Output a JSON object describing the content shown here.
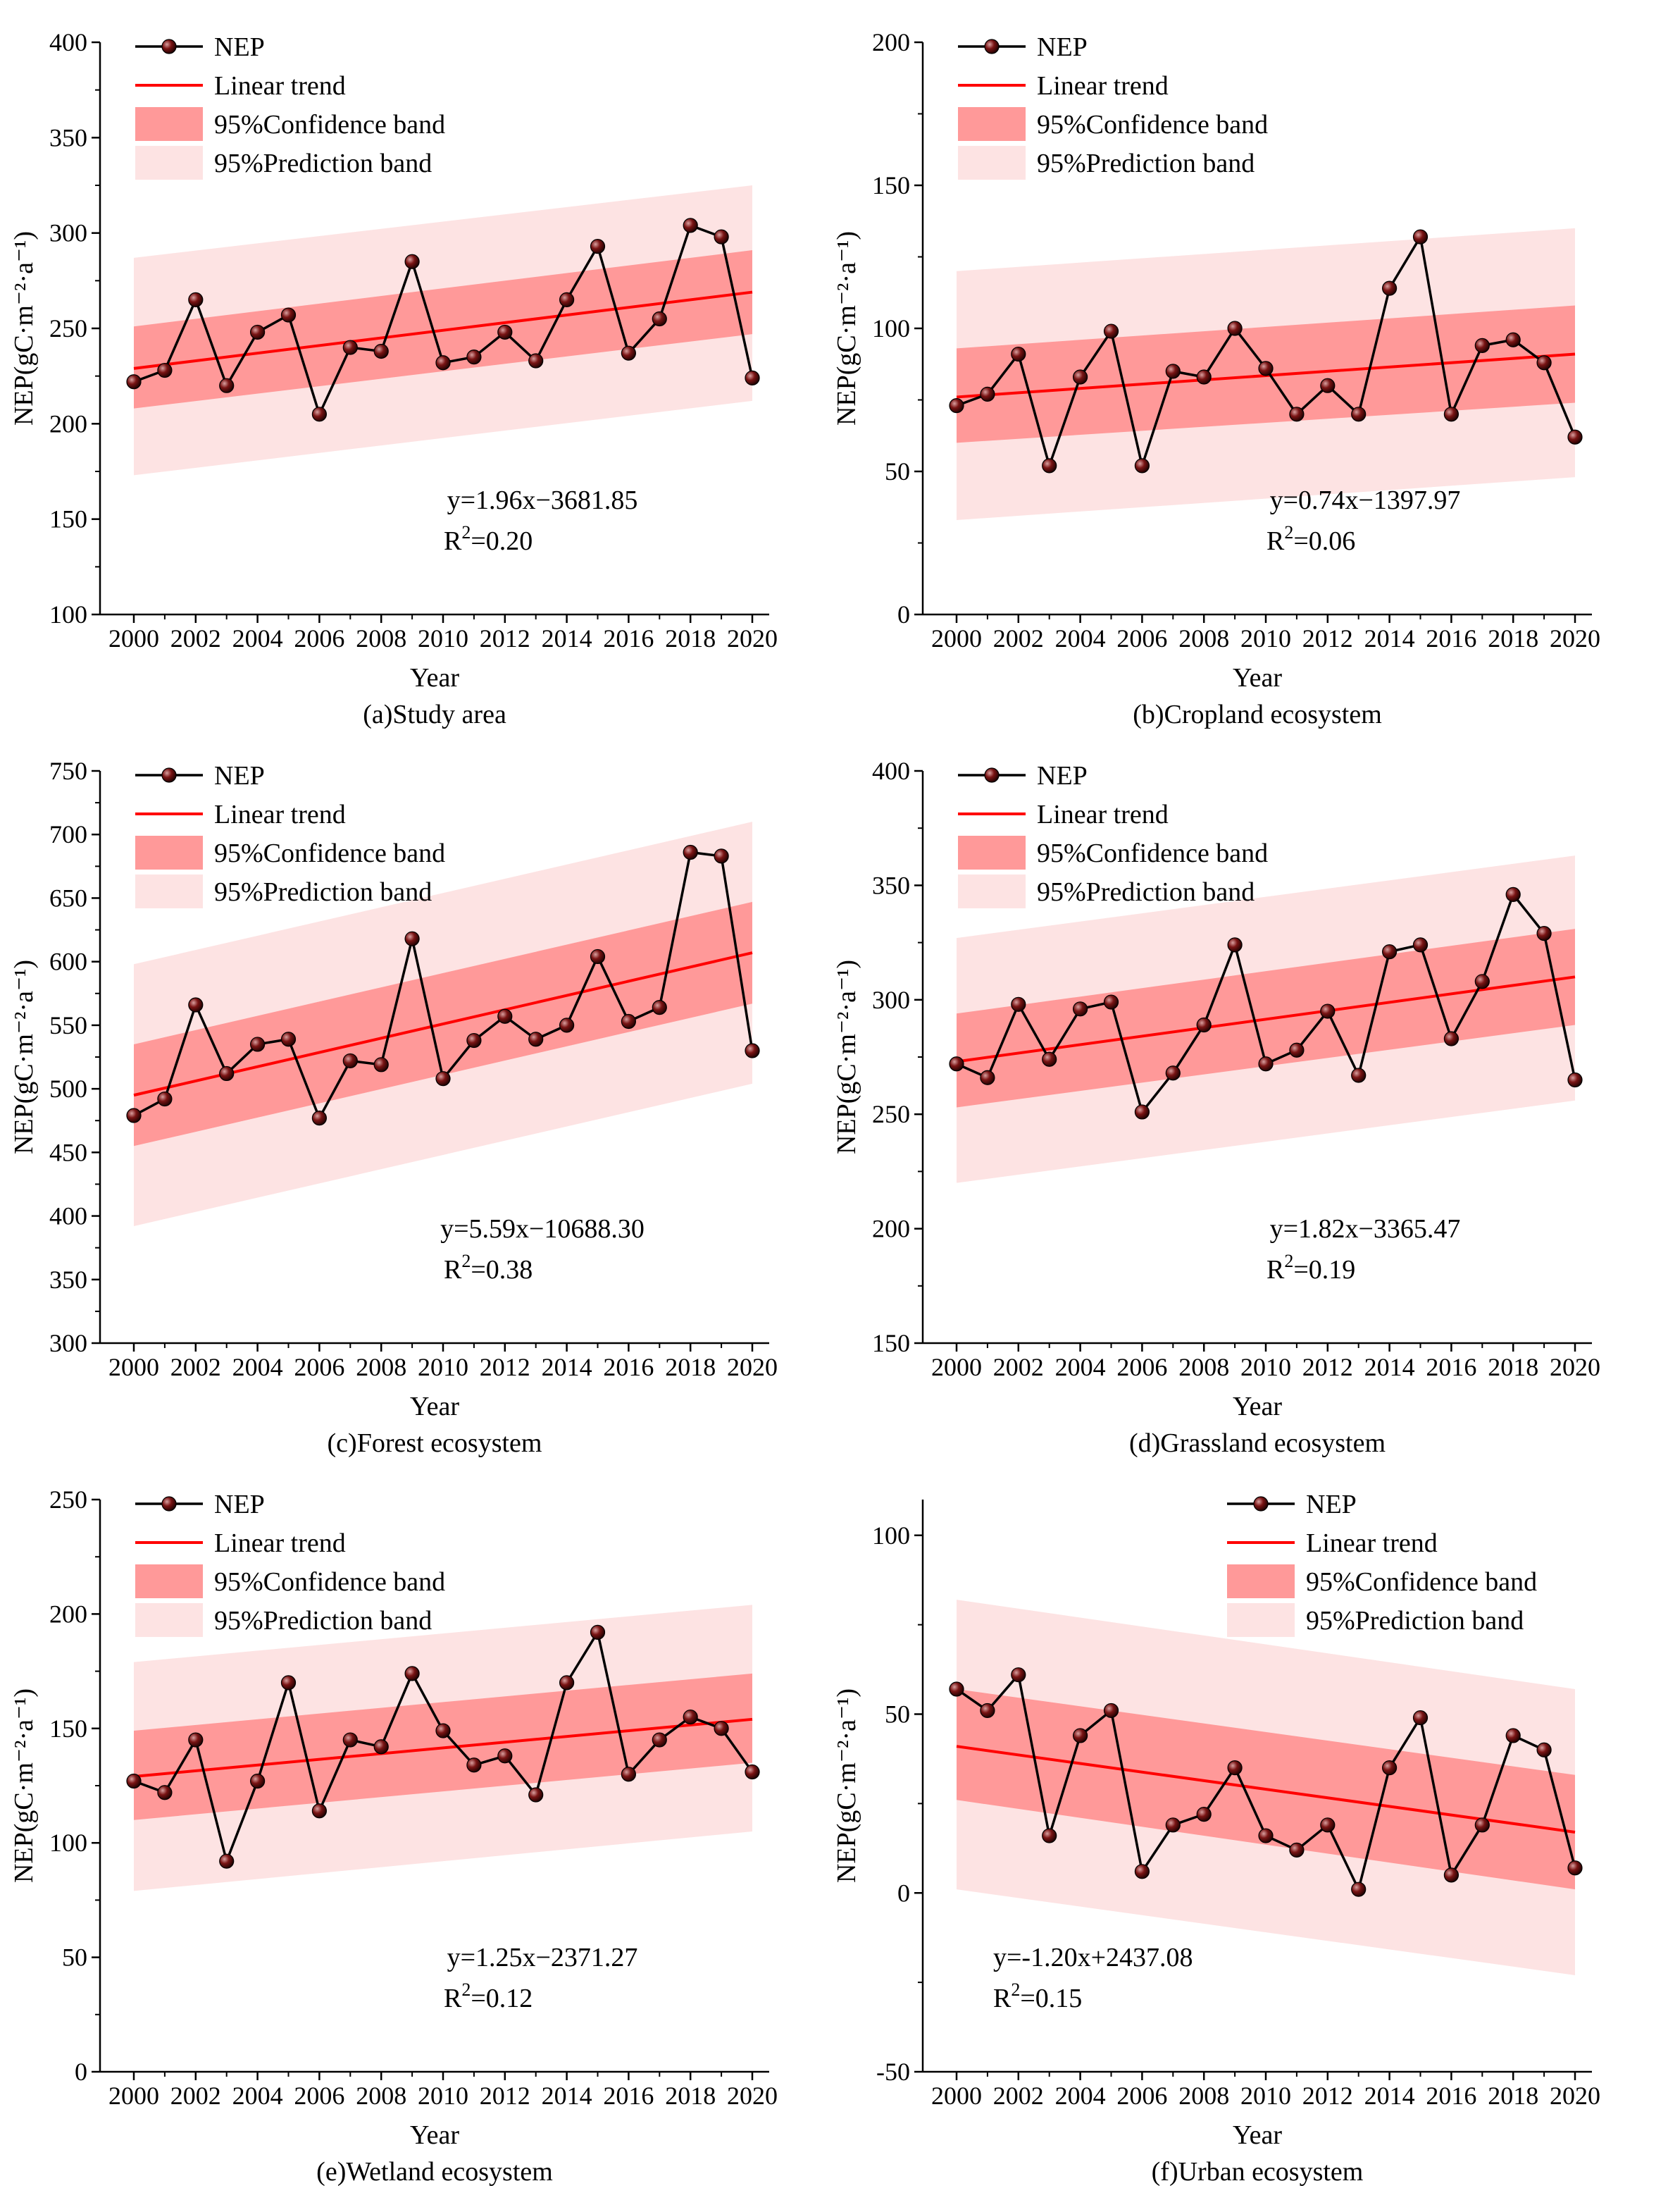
{
  "figure": {
    "colors": {
      "line": "#000000",
      "trend": "#ff0000",
      "confidence": "#ff9999",
      "prediction": "#fde3e3",
      "marker": "#7a1414"
    }
  },
  "chart_data": [
    {
      "type": "line",
      "caption": "(a)Study area",
      "xlabel": "Year",
      "ylabel": "NEP(gC·m⁻²·a⁻¹)",
      "ylim": [
        100,
        400
      ],
      "yticks": [
        100,
        150,
        200,
        250,
        300,
        350,
        400
      ],
      "xlim": [
        2000,
        2020
      ],
      "xticks": [
        2000,
        2002,
        2004,
        2006,
        2008,
        2010,
        2012,
        2014,
        2016,
        2018,
        2020
      ],
      "legend": [
        "NEP",
        "Linear trend",
        "95%Confidence band",
        "95%Prediction band"
      ],
      "x": [
        2000,
        2001,
        2002,
        2003,
        2004,
        2005,
        2006,
        2007,
        2008,
        2009,
        2010,
        2011,
        2012,
        2013,
        2014,
        2015,
        2016,
        2017,
        2018,
        2019,
        2020
      ],
      "series": [
        {
          "name": "NEP",
          "values": [
            222,
            228,
            265,
            220,
            248,
            257,
            205,
            240,
            238,
            285,
            232,
            235,
            248,
            233,
            265,
            293,
            237,
            255,
            304,
            298,
            224
          ]
        }
      ],
      "trend": {
        "slope": 1.96,
        "intercept": -3681.85,
        "start": 229,
        "end": 269
      },
      "confidence_band": {
        "lower": [
          208,
          247
        ],
        "upper": [
          251,
          291
        ]
      },
      "prediction_band": {
        "lower": [
          173,
          212
        ],
        "upper": [
          287,
          325
        ]
      },
      "equation": "y=1.96x−3681.85",
      "r2": "R2=0.20",
      "r2_text": "R",
      "r2_sup": "2",
      "r2_value": "=0.20",
      "annotation_position": "bottom-right"
    },
    {
      "type": "line",
      "caption": "(b)Cropland ecosystem",
      "xlabel": "Year",
      "ylabel": "NEP(gC·m⁻²·a⁻¹)",
      "ylim": [
        0,
        200
      ],
      "yticks": [
        0,
        50,
        100,
        150,
        200
      ],
      "xlim": [
        2000,
        2020
      ],
      "xticks": [
        2000,
        2002,
        2004,
        2006,
        2008,
        2010,
        2012,
        2014,
        2016,
        2018,
        2020
      ],
      "legend": [
        "NEP",
        "Linear trend",
        "95%Confidence band",
        "95%Prediction band"
      ],
      "x": [
        2000,
        2001,
        2002,
        2003,
        2004,
        2005,
        2006,
        2007,
        2008,
        2009,
        2010,
        2011,
        2012,
        2013,
        2014,
        2015,
        2016,
        2017,
        2018,
        2019,
        2020
      ],
      "series": [
        {
          "name": "NEP",
          "values": [
            73,
            77,
            91,
            52,
            83,
            99,
            52,
            85,
            83,
            100,
            86,
            70,
            80,
            70,
            114,
            132,
            70,
            94,
            96,
            88,
            62
          ]
        }
      ],
      "trend": {
        "slope": 0.74,
        "intercept": -1397.97,
        "start": 76,
        "end": 91
      },
      "confidence_band": {
        "lower": [
          60,
          74
        ],
        "upper": [
          93,
          108
        ]
      },
      "prediction_band": {
        "lower": [
          33,
          48
        ],
        "upper": [
          120,
          135
        ]
      },
      "equation": "y=0.74x−1397.97",
      "r2": "R2=0.06",
      "r2_text": "R",
      "r2_sup": "2",
      "r2_value": "=0.06",
      "annotation_position": "bottom-right"
    },
    {
      "type": "line",
      "caption": "(c)Forest ecosystem",
      "xlabel": "Year",
      "ylabel": "NEP(gC·m⁻²·a⁻¹)",
      "ylim": [
        300,
        750
      ],
      "yticks": [
        300,
        350,
        400,
        450,
        500,
        550,
        600,
        650,
        700,
        750
      ],
      "xlim": [
        2000,
        2020
      ],
      "xticks": [
        2000,
        2002,
        2004,
        2006,
        2008,
        2010,
        2012,
        2014,
        2016,
        2018,
        2020
      ],
      "legend": [
        "NEP",
        "Linear trend",
        "95%Confidence band",
        "95%Prediction band"
      ],
      "x": [
        2000,
        2001,
        2002,
        2003,
        2004,
        2005,
        2006,
        2007,
        2008,
        2009,
        2010,
        2011,
        2012,
        2013,
        2014,
        2015,
        2016,
        2017,
        2018,
        2019,
        2020
      ],
      "series": [
        {
          "name": "NEP",
          "values": [
            479,
            492,
            566,
            512,
            535,
            539,
            477,
            522,
            519,
            618,
            508,
            538,
            557,
            539,
            550,
            604,
            553,
            564,
            686,
            683,
            530
          ]
        }
      ],
      "trend": {
        "slope": 5.59,
        "intercept": -10688.3,
        "start": 495,
        "end": 607
      },
      "confidence_band": {
        "lower": [
          455,
          567
        ],
        "upper": [
          535,
          647
        ]
      },
      "prediction_band": {
        "lower": [
          392,
          504
        ],
        "upper": [
          598,
          710
        ]
      },
      "equation": "y=5.59x−10688.30",
      "r2": "R2=0.38",
      "r2_text": "R",
      "r2_sup": "2",
      "r2_value": "=0.38",
      "annotation_position": "bottom-right"
    },
    {
      "type": "line",
      "caption": "(d)Grassland ecosystem",
      "xlabel": "Year",
      "ylabel": "NEP(gC·m⁻²·a⁻¹)",
      "ylim": [
        150,
        400
      ],
      "yticks": [
        150,
        200,
        250,
        300,
        350,
        400
      ],
      "xlim": [
        2000,
        2020
      ],
      "xticks": [
        2000,
        2002,
        2004,
        2006,
        2008,
        2010,
        2012,
        2014,
        2016,
        2018,
        2020
      ],
      "legend": [
        "NEP",
        "Linear trend",
        "95%Confidence band",
        "95%Prediction band"
      ],
      "x": [
        2000,
        2001,
        2002,
        2003,
        2004,
        2005,
        2006,
        2007,
        2008,
        2009,
        2010,
        2011,
        2012,
        2013,
        2014,
        2015,
        2016,
        2017,
        2018,
        2019,
        2020
      ],
      "series": [
        {
          "name": "NEP",
          "values": [
            272,
            266,
            298,
            274,
            296,
            299,
            251,
            268,
            289,
            324,
            272,
            278,
            295,
            267,
            321,
            324,
            283,
            308,
            346,
            329,
            265
          ]
        }
      ],
      "trend": {
        "slope": 1.82,
        "intercept": -3365.47,
        "start": 273,
        "end": 310
      },
      "confidence_band": {
        "lower": [
          253,
          289
        ],
        "upper": [
          294,
          331
        ]
      },
      "prediction_band": {
        "lower": [
          220,
          256
        ],
        "upper": [
          327,
          363
        ]
      },
      "equation": "y=1.82x−3365.47",
      "r2": "R2=0.19",
      "r2_text": "R",
      "r2_sup": "2",
      "r2_value": "=0.19",
      "annotation_position": "bottom-right"
    },
    {
      "type": "line",
      "caption": "(e)Wetland ecosystem",
      "xlabel": "Year",
      "ylabel": "NEP(gC·m⁻²·a⁻¹)",
      "ylim": [
        0,
        250
      ],
      "yticks": [
        0,
        50,
        100,
        150,
        200,
        250
      ],
      "xlim": [
        2000,
        2020
      ],
      "xticks": [
        2000,
        2002,
        2004,
        2006,
        2008,
        2010,
        2012,
        2014,
        2016,
        2018,
        2020
      ],
      "legend": [
        "NEP",
        "Linear trend",
        "95%Confidence band",
        "95%Prediction band"
      ],
      "x": [
        2000,
        2001,
        2002,
        2003,
        2004,
        2005,
        2006,
        2007,
        2008,
        2009,
        2010,
        2011,
        2012,
        2013,
        2014,
        2015,
        2016,
        2017,
        2018,
        2019,
        2020
      ],
      "series": [
        {
          "name": "NEP",
          "values": [
            127,
            122,
            145,
            92,
            127,
            170,
            114,
            145,
            142,
            174,
            149,
            134,
            138,
            121,
            170,
            192,
            130,
            145,
            155,
            150,
            131
          ]
        }
      ],
      "trend": {
        "slope": 1.25,
        "intercept": -2371.27,
        "start": 129,
        "end": 154
      },
      "confidence_band": {
        "lower": [
          110,
          135
        ],
        "upper": [
          149,
          174
        ]
      },
      "prediction_band": {
        "lower": [
          79,
          105
        ],
        "upper": [
          179,
          204
        ]
      },
      "equation": "y=1.25x−2371.27",
      "r2": "R2=0.12",
      "r2_text": "R",
      "r2_sup": "2",
      "r2_value": "=0.12",
      "annotation_position": "bottom-right"
    },
    {
      "type": "line",
      "caption": "(f)Urban ecosystem",
      "xlabel": "Year",
      "ylabel": "NEP(gC·m⁻²·a⁻¹)",
      "ylim": [
        -50,
        110
      ],
      "yticks": [
        -50,
        0,
        50,
        100
      ],
      "xlim": [
        2000,
        2020
      ],
      "xticks": [
        2000,
        2002,
        2004,
        2006,
        2008,
        2010,
        2012,
        2014,
        2016,
        2018,
        2020
      ],
      "legend": [
        "NEP",
        "Linear trend",
        "95%Confidence band",
        "95%Prediction band"
      ],
      "x": [
        2000,
        2001,
        2002,
        2003,
        2004,
        2005,
        2006,
        2007,
        2008,
        2009,
        2010,
        2011,
        2012,
        2013,
        2014,
        2015,
        2016,
        2017,
        2018,
        2019,
        2020
      ],
      "series": [
        {
          "name": "NEP",
          "values": [
            57,
            51,
            61,
            16,
            44,
            51,
            6,
            19,
            22,
            35,
            16,
            12,
            19,
            1,
            35,
            49,
            5,
            19,
            44,
            40,
            7
          ]
        }
      ],
      "trend": {
        "slope": -1.2,
        "intercept": 2437.08,
        "start": 41,
        "end": 17
      },
      "confidence_band": {
        "lower": [
          26,
          1
        ],
        "upper": [
          57,
          33
        ]
      },
      "prediction_band": {
        "lower": [
          1,
          -23
        ],
        "upper": [
          82,
          57
        ]
      },
      "equation": "y=-1.20x+2437.08",
      "r2": "R2=0.15",
      "r2_text": "R",
      "r2_sup": "2",
      "r2_value": "=0.15",
      "annotation_position": "bottom-left"
    }
  ]
}
